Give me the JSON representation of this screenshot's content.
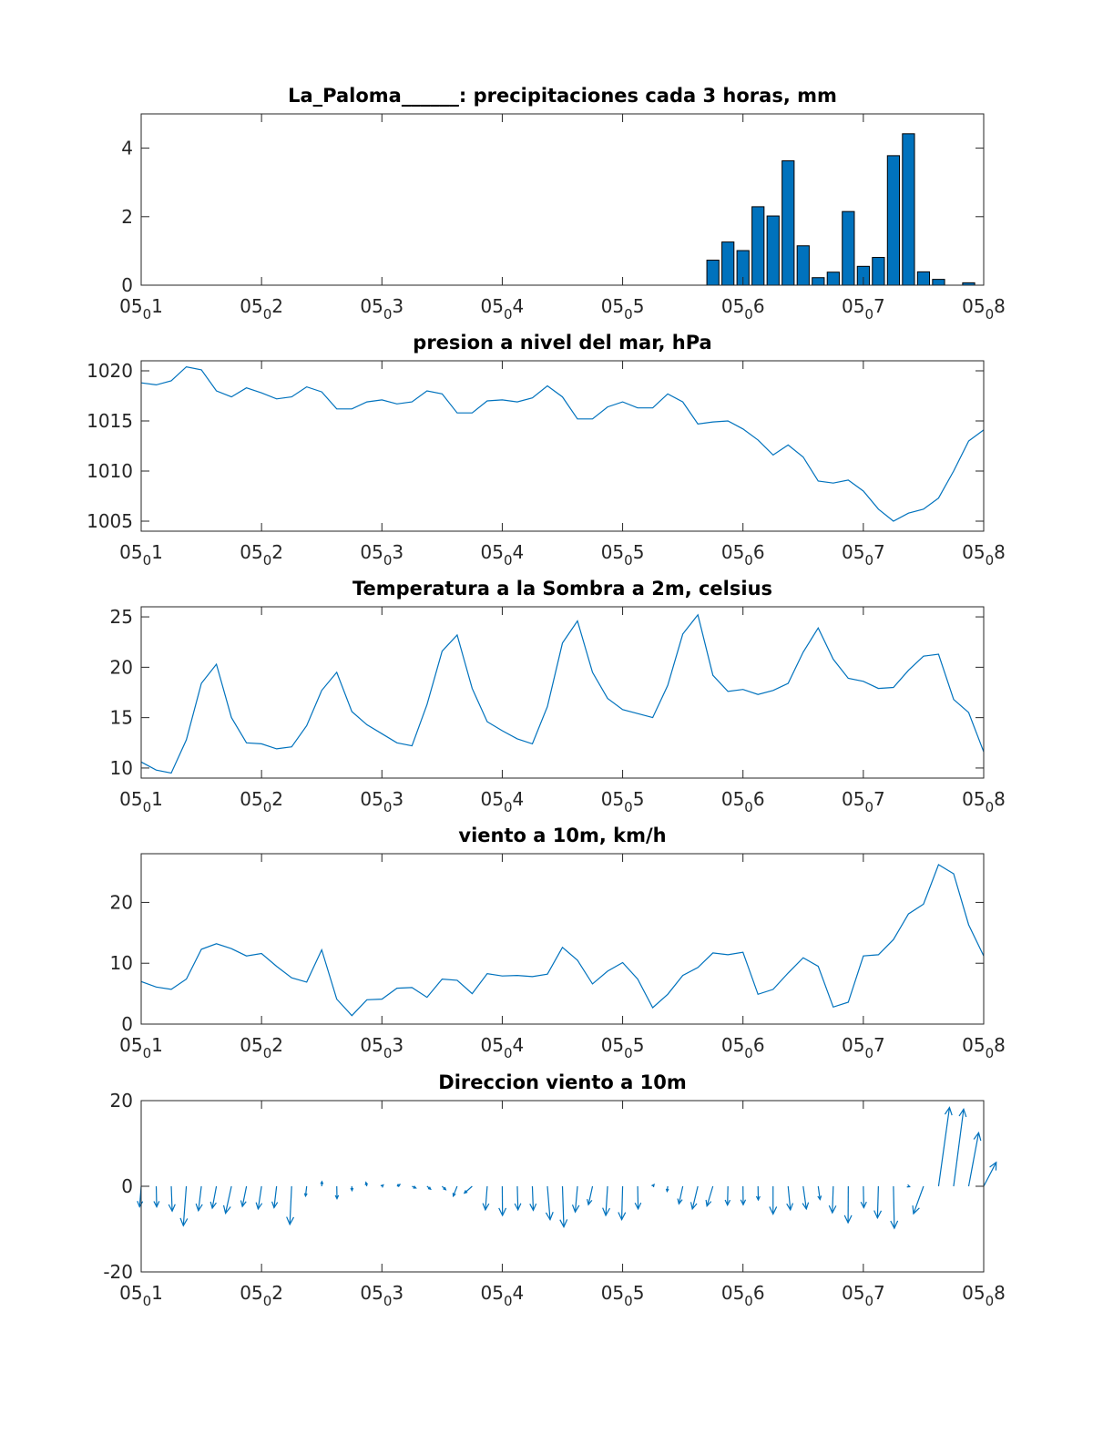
{
  "chart_data": [
    {
      "type": "bar",
      "title": "La_Paloma______: precipitaciones cada 3 horas, mm",
      "ylim": [
        0,
        5
      ],
      "yticks": [
        0,
        2,
        4
      ],
      "xticks": [
        1,
        2,
        3,
        4,
        5,
        6,
        7,
        8
      ],
      "xtick_labels": [
        "05_01",
        "05_02",
        "05_03",
        "05_04",
        "05_05",
        "05_06",
        "05_07",
        "05_08"
      ],
      "bar_width_days": 0.1,
      "x": [
        5.75,
        5.875,
        6.0,
        6.125,
        6.25,
        6.375,
        6.5,
        6.625,
        6.75,
        6.875,
        7.0,
        7.125,
        7.25,
        7.375,
        7.5,
        7.625,
        7.875
      ],
      "values": [
        0.73,
        1.26,
        1.01,
        2.29,
        2.02,
        3.63,
        1.15,
        0.22,
        0.38,
        2.15,
        0.55,
        0.81,
        3.78,
        4.42,
        0.39,
        0.17,
        0.07
      ],
      "color": "#0072bd"
    },
    {
      "type": "line",
      "title": "presion a nivel del mar, hPa",
      "ylim": [
        1004,
        1021
      ],
      "yticks": [
        1005,
        1010,
        1015,
        1020
      ],
      "xticks": [
        1,
        2,
        3,
        4,
        5,
        6,
        7,
        8
      ],
      "xtick_labels": [
        "05_01",
        "05_02",
        "05_03",
        "05_04",
        "05_05",
        "05_06",
        "05_07",
        "05_08"
      ],
      "x_start": 1,
      "x_step": 0.125,
      "values": [
        1018.8,
        1018.6,
        1019.0,
        1020.4,
        1020.1,
        1018.0,
        1017.4,
        1018.3,
        1017.8,
        1017.2,
        1017.4,
        1018.4,
        1017.9,
        1016.2,
        1016.2,
        1016.9,
        1017.1,
        1016.7,
        1016.9,
        1018.0,
        1017.7,
        1015.8,
        1015.8,
        1017.0,
        1017.1,
        1016.9,
        1017.3,
        1018.5,
        1017.4,
        1015.2,
        1015.2,
        1016.4,
        1016.9,
        1016.3,
        1016.3,
        1017.7,
        1016.9,
        1014.7,
        1014.9,
        1015.0,
        1014.2,
        1013.1,
        1011.6,
        1012.6,
        1011.4,
        1009.0,
        1008.8,
        1009.1,
        1008.0,
        1006.2,
        1005.0,
        1005.8,
        1006.2,
        1007.3,
        1010.0,
        1013.0,
        1014.1
      ],
      "color": "#0072bd"
    },
    {
      "type": "line",
      "title": "Temperatura a la Sombra a 2m, celsius",
      "ylim": [
        9,
        26
      ],
      "yticks": [
        10,
        15,
        20,
        25
      ],
      "xticks": [
        1,
        2,
        3,
        4,
        5,
        6,
        7,
        8
      ],
      "xtick_labels": [
        "05_01",
        "05_02",
        "05_03",
        "05_04",
        "05_05",
        "05_06",
        "05_07",
        "05_08"
      ],
      "x_start": 1,
      "x_step": 0.125,
      "values": [
        10.6,
        9.8,
        9.5,
        12.8,
        18.4,
        20.3,
        15.0,
        12.5,
        12.4,
        11.9,
        12.1,
        14.2,
        17.7,
        19.5,
        15.6,
        14.3,
        13.4,
        12.5,
        12.2,
        16.3,
        21.6,
        23.2,
        17.9,
        14.6,
        13.7,
        12.9,
        12.4,
        16.1,
        22.4,
        24.6,
        19.5,
        16.9,
        15.8,
        15.4,
        15.0,
        18.2,
        23.3,
        25.2,
        19.2,
        17.6,
        17.8,
        17.3,
        17.7,
        18.4,
        21.5,
        23.9,
        20.8,
        18.9,
        18.6,
        17.9,
        18.0,
        19.7,
        21.1,
        21.3,
        16.8,
        15.5,
        11.6
      ],
      "color": "#0072bd"
    },
    {
      "type": "line",
      "title": "viento a 10m, km/h",
      "ylim": [
        0,
        28
      ],
      "yticks": [
        0,
        10,
        20
      ],
      "xticks": [
        1,
        2,
        3,
        4,
        5,
        6,
        7,
        8
      ],
      "xtick_labels": [
        "05_01",
        "05_02",
        "05_03",
        "05_04",
        "05_05",
        "05_06",
        "05_07",
        "05_08"
      ],
      "x_start": 1,
      "x_step": 0.125,
      "values": [
        7.0,
        6.1,
        5.7,
        7.4,
        12.3,
        13.2,
        12.4,
        11.2,
        11.6,
        9.5,
        7.6,
        6.9,
        12.2,
        4.1,
        1.4,
        4.0,
        4.1,
        5.9,
        6.0,
        4.4,
        7.4,
        7.2,
        5.0,
        8.3,
        7.9,
        8.0,
        7.8,
        8.2,
        12.6,
        10.5,
        6.6,
        8.7,
        10.1,
        7.4,
        2.7,
        4.9,
        8.0,
        9.3,
        11.7,
        11.4,
        11.8,
        4.9,
        5.7,
        8.4,
        10.9,
        9.5,
        2.8,
        3.6,
        11.2,
        11.4,
        13.9,
        18.1,
        19.7,
        26.2,
        24.7,
        16.3,
        11.2
      ],
      "color": "#0072bd"
    },
    {
      "type": "quiver",
      "title": "Direccion viento a 10m",
      "ylim": [
        -20,
        20
      ],
      "yticks": [
        -20,
        0,
        20
      ],
      "xticks": [
        1,
        2,
        3,
        4,
        5,
        6,
        7,
        8
      ],
      "xtick_labels": [
        "05_01",
        "05_02",
        "05_03",
        "05_04",
        "05_05",
        "05_06",
        "05_07",
        "05_08"
      ],
      "x_start": 1,
      "x_step": 0.125,
      "x_days_per_unit": 0.0189,
      "u": [
        -0.7,
        0.2,
        0.4,
        -1.3,
        -1.3,
        -1.8,
        -2.6,
        -1.8,
        -1.5,
        -1.1,
        -0.8,
        -0.5,
        0.1,
        0.1,
        0.1,
        -0.4,
        0.6,
        1.3,
        1.7,
        1.6,
        1.6,
        -1.7,
        -3.4,
        -0.8,
        0.1,
        0.3,
        0.4,
        1.2,
        0.6,
        -1.0,
        -1.8,
        -0.8,
        -0.4,
        0.2,
        0.6,
        -0.3,
        -1.7,
        -2.4,
        -2.6,
        -0.2,
        0.1,
        0.1,
        0.0,
        1.0,
        1.4,
        0.8,
        -0.4,
        -0.1,
        0.2,
        -0.4,
        0.4,
        0.5,
        -4.4,
        4.8,
        4.4,
        4.4,
        5.5
      ],
      "v": [
        -4.8,
        -4.8,
        -5.8,
        -9.2,
        -5.7,
        -5.1,
        -6.3,
        -4.7,
        -5.3,
        -5.0,
        -8.9,
        -2.3,
        1.1,
        -2.9,
        -1.0,
        0.9,
        0.3,
        0.4,
        -0.4,
        -0.7,
        -0.8,
        -2.3,
        -1.6,
        -5.5,
        -6.8,
        -5.5,
        -5.6,
        -7.8,
        -9.5,
        -6.0,
        -4.3,
        -6.8,
        -7.8,
        -5.3,
        0.4,
        -1.2,
        -4.1,
        -5.3,
        -4.6,
        -4.4,
        -4.3,
        -3.2,
        -6.5,
        -5.5,
        -5.3,
        -3.1,
        -6.2,
        -8.5,
        -5.0,
        -7.4,
        -9.8,
        -0.1,
        -6.4,
        18.4,
        18.0,
        12.5,
        5.6
      ],
      "color": "#0072bd"
    }
  ]
}
